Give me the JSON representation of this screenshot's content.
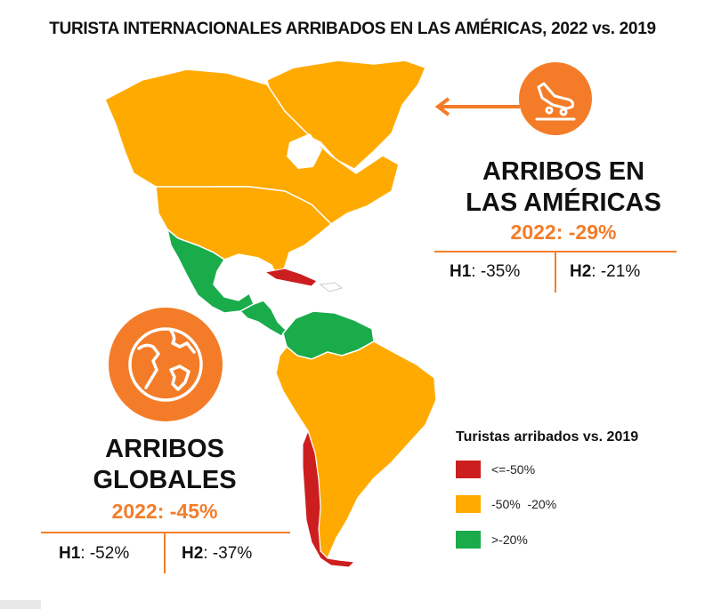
{
  "title": "TURISTA INTERNACIONALES ARRIBADOS EN LAS AMÉRICAS, 2022 vs. 2019",
  "colors": {
    "accent": "#f47c28",
    "red": "#cc1e1e",
    "orange": "#ffaa00",
    "green": "#1aab4b"
  },
  "americas": {
    "icon": "airplane-landing-icon",
    "heading_line1": "ARRIBOS EN",
    "heading_line2": "LAS AMÉRICAS",
    "year_change": "2022: -29%",
    "h1_label": "H1",
    "h1_value": ": -35%",
    "h2_label": "H2",
    "h2_value": ": -21%"
  },
  "global": {
    "icon": "globe-icon",
    "heading_line1": "ARRIBOS",
    "heading_line2": "GLOBALES",
    "year_change": "2022: -45%",
    "h1_label": "H1",
    "h1_value": ": -52%",
    "h2_label": "H2",
    "h2_value": ": -37%"
  },
  "legend": {
    "title": "Turistas arribados vs. 2019",
    "items": [
      {
        "label": "<=-50%",
        "color": "#cc1e1e"
      },
      {
        "label": "-50%  -20%",
        "color": "#ffaa00"
      },
      {
        "label": ">-20%",
        "color": "#1aab4b"
      }
    ]
  },
  "map_regions": [
    {
      "region": "Canada",
      "category": "-50%  -20%"
    },
    {
      "region": "United States",
      "category": "-50%  -20%"
    },
    {
      "region": "Mexico",
      "category": ">-20%"
    },
    {
      "region": "Central America",
      "category": ">-20%"
    },
    {
      "region": "Caribbean",
      "category": "<=-50%"
    },
    {
      "region": "Northern South America",
      "category": ">-20%"
    },
    {
      "region": "South America",
      "category": "-50%  -20%"
    },
    {
      "region": "Chile",
      "category": "<=-50%"
    }
  ]
}
